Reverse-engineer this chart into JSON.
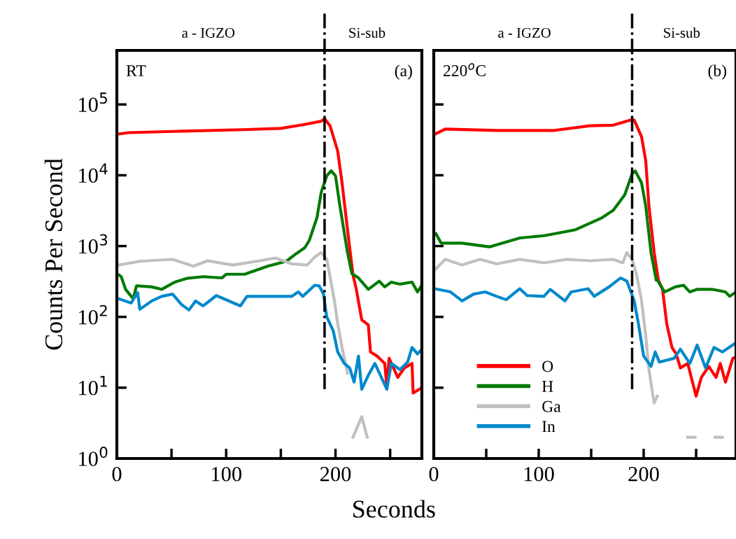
{
  "chart_data": [
    {
      "type": "line",
      "ylabel": "Counts Per Second",
      "xlabel": "Seconds",
      "log": "y",
      "xlim": [
        0,
        279
      ],
      "ylim": [
        1,
        580000
      ],
      "xticks": [
        0,
        {
          "value": 50,
          "label": null
        },
        100,
        {
          "value": 150,
          "label": null
        },
        200,
        {
          "value": 250,
          "label": null
        }
      ],
      "yticks": [
        {
          "value": 1,
          "label": "10$^{0}$"
        },
        {
          "value": 10,
          "label": "10$^{1}$"
        },
        {
          "value": 100,
          "label": "10$^{2}$"
        },
        {
          "value": 1000,
          "label": "10$^{3}$"
        },
        {
          "value": 10000,
          "label": "10$^{4}$"
        },
        {
          "value": 100000,
          "label": "10$^{5}$"
        }
      ],
      "grid": false,
      "legend": false,
      "annotations": [
        "a - IGZO",
        "Si-sub",
        "RT",
        "(a)"
      ],
      "ref_lines": [
        {
          "axis": "x",
          "value": 190,
          "color": "#000000",
          "line_style": "dashdot"
        }
      ],
      "series": [
        {
          "color": "#ff0000",
          "x": [
            0,
            11,
            60,
            115,
            150,
            171,
            187,
            190,
            195,
            202,
            206,
            211,
            216,
            219,
            224,
            230,
            232,
            238,
            245,
            247,
            249,
            257,
            263,
            270,
            271,
            279
          ],
          "values": [
            38000,
            40000,
            42000,
            44000,
            46000,
            52000,
            58000,
            63000,
            50000,
            22000,
            7800,
            1700,
            390,
            246,
            91,
            77,
            32,
            28,
            22,
            10.5,
            26,
            14,
            19,
            22,
            8.4,
            10
          ]
        },
        {
          "color": "#007a00",
          "x": [
            2,
            4,
            8,
            15,
            18,
            32,
            41,
            53,
            64,
            79,
            96,
            100,
            117,
            138,
            155,
            164,
            172,
            176,
            183,
            187,
            192,
            196,
            200,
            204,
            211,
            215,
            221,
            230,
            240,
            245,
            251,
            259,
            270,
            275,
            279
          ],
          "values": [
            390,
            370,
            245,
            180,
            275,
            265,
            245,
            310,
            350,
            370,
            355,
            400,
            400,
            520,
            610,
            780,
            950,
            1200,
            2500,
            5800,
            9800,
            11600,
            9800,
            3700,
            810,
            410,
            355,
            245,
            320,
            265,
            310,
            290,
            310,
            225,
            280
          ]
        },
        {
          "color": "#c0c0c0",
          "x": [
            2,
            21,
            51,
            70,
            83,
            106,
            128,
            145,
            160,
            174,
            181,
            187,
            192,
            194,
            199,
            202,
            206,
            211,
            214,
            216,
            224,
            229
          ],
          "values": [
            540,
            610,
            650,
            520,
            620,
            540,
            610,
            680,
            560,
            540,
            700,
            810,
            650,
            450,
            170,
            80,
            37,
            16,
            null,
            2,
            3.9,
            2
          ]
        },
        {
          "color": "#0088cc",
          "x": [
            2,
            13,
            19,
            21,
            32,
            41,
            51,
            59,
            66,
            72,
            79,
            91,
            113,
            119,
            138,
            160,
            166,
            170,
            181,
            185,
            189,
            192,
            198,
            202,
            208,
            213,
            217,
            221,
            224,
            230,
            236,
            247,
            251,
            259,
            266,
            270,
            275,
            279
          ],
          "values": [
            180,
            157,
            220,
            128,
            168,
            195,
            210,
            150,
            125,
            168,
            143,
            200,
            143,
            195,
            195,
            195,
            225,
            195,
            280,
            275,
            210,
            100,
            63,
            32,
            22,
            19,
            12,
            28,
            9.5,
            15,
            22,
            9.5,
            22,
            18,
            23,
            37,
            30,
            35
          ]
        }
      ]
    },
    {
      "type": "line",
      "log": "y",
      "xlim": [
        0,
        288
      ],
      "ylim": [
        1,
        580000
      ],
      "tick_labels": "x",
      "xticks": [
        0,
        {
          "value": 50,
          "label": null
        },
        100,
        {
          "value": 150,
          "label": null
        },
        200,
        {
          "value": 250,
          "label": null
        }
      ],
      "yticks": [
        1,
        10,
        100,
        1000,
        10000,
        100000
      ],
      "grid": false,
      "legend": "bottom left",
      "annotations": [
        "a - IGZO",
        "Si-sub",
        "220$^{o}$C",
        "(b)"
      ],
      "ref_lines": [
        {
          "axis": "x",
          "value": 189,
          "color": "#000000",
          "line_style": "dashdot"
        }
      ],
      "series": [
        {
          "name": "O",
          "color": "#ff0000",
          "x": [
            1,
            11,
            60,
            115,
            149,
            171,
            187,
            191,
            198,
            202,
            205,
            210,
            214,
            218,
            222,
            227,
            231,
            235,
            242,
            250,
            255,
            262,
            269,
            273,
            278,
            285,
            288
          ],
          "values": [
            38000,
            45000,
            43000,
            43000,
            50000,
            51000,
            60000,
            60000,
            35000,
            16000,
            3700,
            810,
            330,
            245,
            80,
            37,
            30,
            19,
            22,
            7.6,
            14,
            20,
            14,
            22,
            12,
            26,
            27
          ]
        },
        {
          "name": "H",
          "color": "#007a00",
          "x": [
            2,
            7,
            27,
            53,
            82,
            105,
            135,
            160,
            171,
            182,
            189,
            192,
            198,
            202,
            207,
            212,
            213,
            220,
            230,
            238,
            244,
            251,
            265,
            278,
            282,
            288
          ],
          "values": [
            1500,
            1100,
            1100,
            975,
            1300,
            1400,
            1700,
            2500,
            3200,
            5300,
            10500,
            11500,
            7800,
            3700,
            810,
            330,
            330,
            225,
            265,
            280,
            225,
            245,
            245,
            225,
            195,
            225
          ]
        },
        {
          "name": "Ga",
          "color": "#c0c0c0",
          "x": [
            1,
            11,
            27,
            44,
            60,
            82,
            105,
            127,
            149,
            171,
            180,
            184,
            189,
            193,
            198,
            202,
            205,
            210,
            213,
            230,
            242,
            249,
            258,
            268,
            275
          ],
          "values": [
            460,
            650,
            540,
            650,
            560,
            650,
            580,
            650,
            620,
            650,
            580,
            810,
            650,
            410,
            170,
            54,
            18,
            6.1,
            7.6,
            null,
            2,
            2,
            null,
            2,
            2
          ]
        },
        {
          "name": "In",
          "color": "#0088cc",
          "x": [
            1,
            16,
            27,
            38,
            49,
            60,
            69,
            82,
            89,
            105,
            111,
            125,
            131,
            147,
            153,
            167,
            178,
            184,
            191,
            195,
            200,
            207,
            211,
            215,
            229,
            235,
            244,
            251,
            259,
            267,
            275,
            288
          ],
          "values": [
            250,
            225,
            168,
            210,
            225,
            195,
            175,
            250,
            200,
            195,
            245,
            168,
            225,
            250,
            195,
            265,
            355,
            320,
            168,
            80,
            28,
            20,
            32,
            23,
            26,
            35,
            22,
            40,
            19,
            37,
            32,
            43
          ]
        }
      ]
    }
  ]
}
